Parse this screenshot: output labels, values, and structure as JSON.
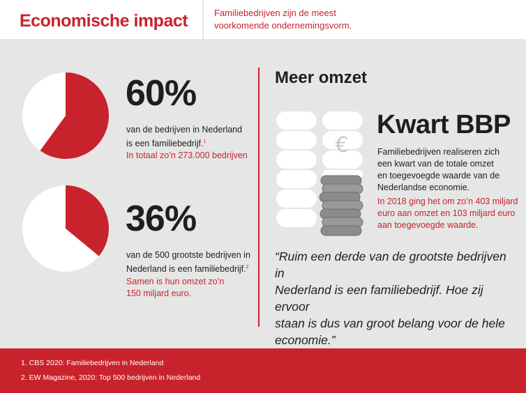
{
  "header": {
    "title": "Economische impact",
    "intro_line1": "Familiebedrijven zijn de meest",
    "intro_line2": "voorkomende ondernemingsvorm."
  },
  "stat1": {
    "percent": "60%",
    "share": 0.6,
    "line1": "van de bedrijven in Nederland",
    "line2": "is een familiebedrijf.",
    "footnote": "1",
    "red": "In totaal zo’n 273.000 bedrijven"
  },
  "stat2": {
    "percent": "36%",
    "share": 0.36,
    "line1": "van de 500 grootste bedrijven in",
    "line2": "Nederland is een familiebedrijf.",
    "footnote": "2",
    "red_line1": "Samen is hun omzet zo’n",
    "red_line2": "150 miljard euro."
  },
  "right": {
    "heading": "Meer omzet",
    "kwart": "Kwart BBP",
    "coin_symbol": "€",
    "desc_line1": "Familiebedrijven realiseren zich",
    "desc_line2": "een kwart van de totale omzet",
    "desc_line3": "en toegevoegde waarde van de",
    "desc_line4": "Nederlandse economie.",
    "red_line1": "In 2018 ging het om zo’n 403 miljard",
    "red_line2": "euro aan omzet en 103 miljard euro",
    "red_line3": "aan toegevoegde waarde.",
    "quote_line1": "“Ruim een derde van de grootste bedrijven in",
    "quote_line2": "Nederland is een familiebedrijf. Hoe zij ervoor",
    "quote_line3": "staan is dus van groot belang voor de hele",
    "quote_line4": "economie.”"
  },
  "footer": {
    "note1": "1. CBS  2020: Familiebedrijven in Nederland",
    "note2": "2. EW Magazine, 2020: Top 500 bedrijven in Nederland"
  },
  "colors": {
    "accent": "#c8232c",
    "background": "#e6e6e6",
    "text": "#1e1e1e",
    "coin_gray": "#8c8c8c"
  }
}
